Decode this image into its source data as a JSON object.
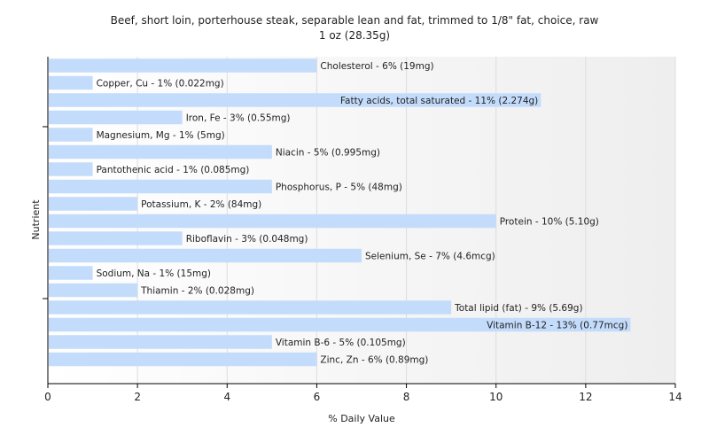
{
  "chart_data": {
    "type": "bar",
    "orientation": "horizontal",
    "title": "Beef, short loin, porterhouse steak, separable lean and fat, trimmed to 1/8\" fat, choice, raw",
    "subtitle": "1 oz (28.35g)",
    "xlabel": "% Daily Value",
    "ylabel": "Nutrient",
    "xlim": [
      0,
      14
    ],
    "xticks": [
      0,
      2,
      4,
      6,
      8,
      10,
      12,
      14
    ],
    "grid": true,
    "bar_color": "#c4dcfb",
    "categories": [
      "Cholesterol",
      "Copper, Cu",
      "Fatty acids, total saturated",
      "Iron, Fe",
      "Magnesium, Mg",
      "Niacin",
      "Pantothenic acid",
      "Phosphorus, P",
      "Potassium, K",
      "Protein",
      "Riboflavin",
      "Selenium, Se",
      "Sodium, Na",
      "Thiamin",
      "Total lipid (fat)",
      "Vitamin B-12",
      "Vitamin B-6",
      "Zinc, Zn"
    ],
    "values": [
      6,
      1,
      11,
      3,
      1,
      5,
      1,
      5,
      2,
      10,
      3,
      7,
      1,
      2,
      9,
      13,
      5,
      6
    ],
    "labels": [
      "Cholesterol - 6% (19mg)",
      "Copper, Cu - 1% (0.022mg)",
      "Fatty acids, total saturated - 11% (2.274g)",
      "Iron, Fe - 3% (0.55mg)",
      "Magnesium, Mg - 1% (5mg)",
      "Niacin - 5% (0.995mg)",
      "Pantothenic acid - 1% (0.085mg)",
      "Phosphorus, P - 5% (48mg)",
      "Potassium, K - 2% (84mg)",
      "Protein - 10% (5.10g)",
      "Riboflavin - 3% (0.048mg)",
      "Selenium, Se - 7% (4.6mcg)",
      "Sodium, Na - 1% (15mg)",
      "Thiamin - 2% (0.028mg)",
      "Total lipid (fat) - 9% (5.69g)",
      "Vitamin B-12 - 13% (0.77mcg)",
      "Vitamin B-6 - 5% (0.105mg)",
      "Zinc, Zn - 6% (0.89mg)"
    ]
  }
}
